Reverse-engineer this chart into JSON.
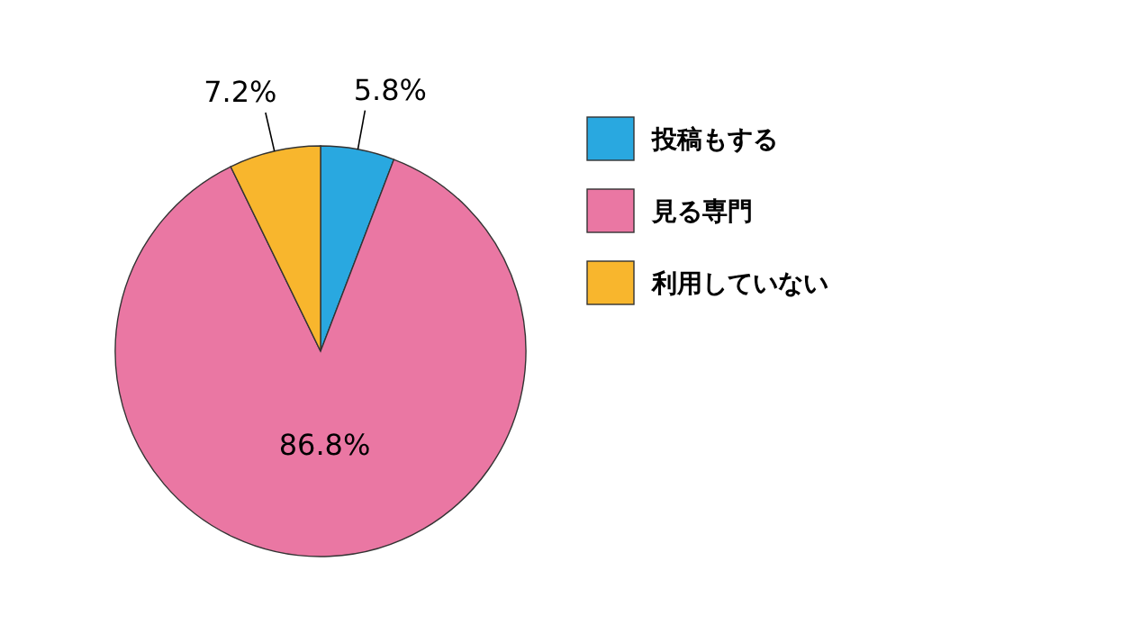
{
  "chart_data": {
    "type": "pie",
    "categories": [
      "投稿もする",
      "見る専門",
      "利用していない"
    ],
    "values": [
      5.8,
      86.8,
      7.2
    ],
    "colors": [
      "#29a8e0",
      "#ea77a3",
      "#f8b62d"
    ],
    "value_labels": [
      "5.8%",
      "86.8%",
      "7.2%"
    ],
    "legend": "right"
  }
}
